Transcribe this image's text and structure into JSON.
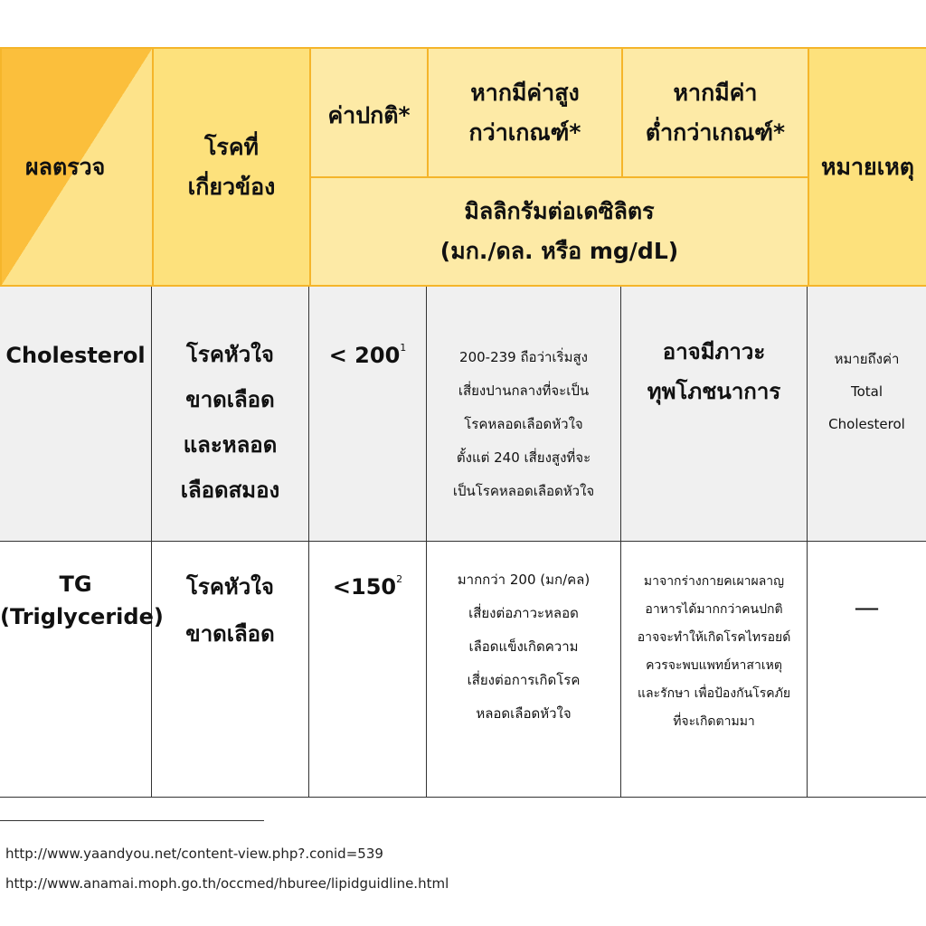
{
  "table": {
    "header": {
      "result": "ผลตรวจ",
      "disease": "โรคที่\nเกี่ยวข้อง",
      "normal": "ค่าปกติ*",
      "high": "หากมีค่าสูง\nกว่าเกณฑ์*",
      "low": "หากมีค่า\nต่ำกว่าเกณฑ์*",
      "remark": "หมายเหตุ",
      "unit": "มิลลิกรัมต่อเดซิลิตร\n(มก./ดล. หรือ mg/dL)"
    },
    "rows": [
      {
        "test": "Cholesterol",
        "disease": "โรคหัวใจ\nขาดเลือด\nและหลอด\nเลือดสมอง",
        "normal": "< 200",
        "ref": "1",
        "high": "200-239 ถือว่าเริ่มสูง\nเสี่ยงปานกลางที่จะเป็น\nโรคหลอดเลือดหัวใจ\nตั้งแต่  240 เสี่ยงสูงที่จะ\nเป็นโรคหลอดเลือดหัวใจ",
        "low": "อาจมีภาวะ\nทุพโภชนาการ",
        "remark": "หมายถึงค่า\nTotal\nCholesterol"
      },
      {
        "test": "TG\n(Triglyceride)",
        "disease": "โรคหัวใจ\nขาดเลือด",
        "normal": "<150",
        "ref": "2",
        "high": "มากกว่า 200 (มก/คล)\nเสี่ยงต่อภาวะหลอด\nเลือดแข็งเกิดความ\nเสี่ยงต่อการเกิดโรค\nหลอดเลือดหัวใจ",
        "low": "มาจากร่างกายคเผาผลาญ\nอาหารได้มากกว่าคนปกติ\nอาจจะทำให้เกิดโรคไทรอยด์\nควรจะพบแพทย์หาสาเหตุ\nและรักษา  เพื่อป้องกันโรคภัย\nที่จะเกิดตามมา",
        "remark": "—"
      }
    ]
  },
  "footnotes": [
    "http://www.yaandyou.net/content-view.php?.conid=539",
    "http://www.anamai.moph.go.th/occmed/hburee/lipidguidline.html"
  ]
}
